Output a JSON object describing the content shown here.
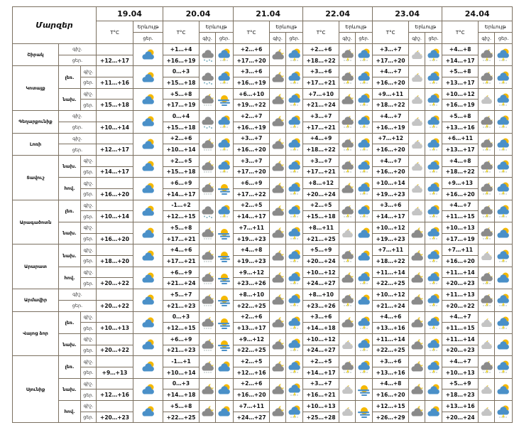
{
  "header": {
    "title": "Մարզեր",
    "tc": "T°C",
    "phen": "Երևույթ",
    "night": "գիշ.",
    "day": "ցեր.",
    "dates": [
      "19.04",
      "20.04",
      "21.04",
      "22.04",
      "23.04",
      "24.04"
    ]
  },
  "colors": {
    "border": "#7b7060",
    "sun": "#f5b800",
    "cloud_blue": "#4a90c8",
    "cloud_gray": "#8a8a8a",
    "cloud_light": "#c4c4c4"
  },
  "regions": [
    {
      "name": "Շիրակ",
      "subs": [
        {
          "name": "",
          "t19": "+12…+17",
          "days": [
            {
              "n": "+1…+4",
              "d": "+16…+19",
              "icons": [
                "rain-snow-night",
                "thunder-rain-day"
              ]
            },
            {
              "n": "+2…+6",
              "d": "+17…+20",
              "icons": [
                "cloudy-night",
                "thunder-rain-day"
              ]
            },
            {
              "n": "+2…+6",
              "d": "+18…+22",
              "icons": [
                "thunder-rain-night",
                "thunder-rain-day"
              ]
            },
            {
              "n": "+3…+7",
              "d": "+17…+20",
              "icons": [
                "partly-cloudy-night",
                "thunder-rain-day"
              ]
            },
            {
              "n": "+4…+8",
              "d": "+14…+17",
              "icons": [
                "thunder-rain-night",
                "thunder-rain-day"
              ]
            }
          ]
        }
      ]
    },
    {
      "name": "Կոտայք",
      "subs": [
        {
          "name": "լեռ.",
          "t19": "+11…+16",
          "days": [
            {
              "n": "0…+3",
              "d": "+15…+18",
              "icons": [
                "rain-snow-night",
                "thunder-rain-day"
              ]
            },
            {
              "n": "+3…+6",
              "d": "+16…+19",
              "icons": [
                "cloudy-night",
                "thunder-rain-day"
              ]
            },
            {
              "n": "+3…+6",
              "d": "+17…+21",
              "icons": [
                "thunder-rain-night",
                "thunder-rain-day"
              ]
            },
            {
              "n": "+4…+7",
              "d": "+16…+20",
              "icons": [
                "partly-cloudy-night",
                "thunder-rain-day"
              ]
            },
            {
              "n": "+5…+8",
              "d": "+13…+17",
              "icons": [
                "thunder-rain-night",
                "thunder-rain-day"
              ]
            }
          ]
        },
        {
          "name": "նախ.",
          "t19": "+15…+18",
          "days": [
            {
              "n": "+5…+8",
              "d": "+17…+19",
              "icons": [
                "cloudy-night-drizzle",
                "sun-haze"
              ]
            },
            {
              "n": "+6…+10",
              "d": "+19…+22",
              "icons": [
                "cloudy-night",
                "thunder-rain-day"
              ]
            },
            {
              "n": "+7…+10",
              "d": "+21…+24",
              "icons": [
                "cloudy-night",
                "thunder-rain-day"
              ]
            },
            {
              "n": "+9…+11",
              "d": "+18…+22",
              "icons": [
                "partly-cloudy-night",
                "thunder-rain-day"
              ]
            },
            {
              "n": "+10…+12",
              "d": "+16…+19",
              "icons": [
                "partly-cloudy-night",
                "thunder-rain-day"
              ]
            }
          ]
        }
      ]
    },
    {
      "name": "Գեղարքունիք",
      "subs": [
        {
          "name": "",
          "t19": "+10…+14",
          "days": [
            {
              "n": "0…+4",
              "d": "+15…+18",
              "icons": [
                "rain-snow-night",
                "thunder-rain-day"
              ]
            },
            {
              "n": "+2…+7",
              "d": "+16…+19",
              "icons": [
                "cloudy-night",
                "thunder-rain-day"
              ]
            },
            {
              "n": "+3…+7",
              "d": "+17…+21",
              "icons": [
                "thunder-rain-night",
                "thunder-rain-day"
              ]
            },
            {
              "n": "+4…+7",
              "d": "+16…+19",
              "icons": [
                "partly-cloudy-night",
                "thunder-rain-day"
              ]
            },
            {
              "n": "+5…+8",
              "d": "+13…+16",
              "icons": [
                "thunder-rain-night",
                "thunder-rain-day"
              ]
            }
          ]
        }
      ]
    },
    {
      "name": "Լոռի",
      "subs": [
        {
          "name": "",
          "t19": "+12…+17",
          "days": [
            {
              "n": "+2…+6",
              "d": "+10…+14",
              "icons": [
                "cloudy-night-drizzle",
                "thunder-rain-day"
              ]
            },
            {
              "n": "+3…+7",
              "d": "+16…+20",
              "icons": [
                "cloudy-night",
                "thunder-rain-day"
              ]
            },
            {
              "n": "+4…+9",
              "d": "+18…+22",
              "icons": [
                "thunder-rain-night",
                "thunder-rain-day"
              ]
            },
            {
              "n": "+7…+12",
              "d": "+16…+20",
              "icons": [
                "partly-cloudy-night",
                "thunder-rain-day"
              ]
            },
            {
              "n": "+6…+11",
              "d": "+13…+17",
              "icons": [
                "thunder-rain-night",
                "thunder-rain-day"
              ]
            }
          ]
        }
      ]
    },
    {
      "name": "Տավուշ",
      "subs": [
        {
          "name": "նախ.",
          "t19": "+14…+17",
          "days": [
            {
              "n": "+2…+5",
              "d": "+15…+18",
              "icons": [
                "cloudy-night-drizzle",
                "thunder-rain-day"
              ]
            },
            {
              "n": "+3…+7",
              "d": "+17…+20",
              "icons": [
                "cloudy-night",
                "thunder-rain-day"
              ]
            },
            {
              "n": "+3…+7",
              "d": "+17…+21",
              "icons": [
                "thunder-rain-night",
                "thunder-rain-day"
              ]
            },
            {
              "n": "+4…+7",
              "d": "+16…+20",
              "icons": [
                "partly-cloudy-night",
                "thunder-rain-day"
              ]
            },
            {
              "n": "+4…+8",
              "d": "+18…+22",
              "icons": [
                "thunder-rain-night",
                "thunder-rain-day"
              ]
            }
          ]
        },
        {
          "name": "հով.",
          "t19": "+16…+20",
          "days": [
            {
              "n": "+6…+9",
              "d": "+14…+17",
              "icons": [
                "cloudy-night-drizzle",
                "sun-haze"
              ]
            },
            {
              "n": "+6…+9",
              "d": "+17…+22",
              "icons": [
                "cloudy-night",
                "thunder-rain-day"
              ]
            },
            {
              "n": "+8…+12",
              "d": "+20…+24",
              "icons": [
                "cloudy-night",
                "thunder-rain-day"
              ]
            },
            {
              "n": "+10…+14",
              "d": "+19…+23",
              "icons": [
                "partly-cloudy-night",
                "thunder-rain-day"
              ]
            },
            {
              "n": "+9…+13",
              "d": "+16…+20",
              "icons": [
                "thunder-rain-night",
                "thunder-rain-day"
              ]
            }
          ]
        }
      ]
    },
    {
      "name": "Արագածոտն",
      "subs": [
        {
          "name": "լեռ.",
          "t19": "+10…+14",
          "days": [
            {
              "n": "-1…+2",
              "d": "+12…+15",
              "icons": [
                "rain-snow-night",
                "thunder-rain-day"
              ]
            },
            {
              "n": "+2…+5",
              "d": "+14…+17",
              "icons": [
                "cloudy-night",
                "thunder-rain-day"
              ]
            },
            {
              "n": "+2…+5",
              "d": "+15…+18",
              "icons": [
                "thunder-rain-night",
                "thunder-rain-day"
              ]
            },
            {
              "n": "+3…+6",
              "d": "+14…+17",
              "icons": [
                "partly-cloudy-night",
                "thunder-rain-day"
              ]
            },
            {
              "n": "+4…+7",
              "d": "+11…+15",
              "icons": [
                "thunder-rain-night",
                "thunder-rain-day"
              ]
            }
          ]
        },
        {
          "name": "նախ.",
          "t19": "+16…+20",
          "days": [
            {
              "n": "+5…+8",
              "d": "+17…+21",
              "icons": [
                "cloudy-night-drizzle",
                "sun-haze"
              ]
            },
            {
              "n": "+7…+11",
              "d": "+19…+23",
              "icons": [
                "cloudy-night",
                "thunder-rain-day"
              ]
            },
            {
              "n": "+8…+11",
              "d": "+21…+25",
              "icons": [
                "partly-cloudy-night",
                "partly-cloudy-day"
              ]
            },
            {
              "n": "+10…+12",
              "d": "+19…+23",
              "icons": [
                "cloudy-night",
                "thunder-rain-day"
              ]
            },
            {
              "n": "+10…+13",
              "d": "+17…+19",
              "icons": [
                "thunder-rain-night",
                "partly-cloudy-day"
              ]
            }
          ]
        }
      ]
    },
    {
      "name": "Արարատ",
      "subs": [
        {
          "name": "նախ.",
          "t19": "+18…+20",
          "days": [
            {
              "n": "+4…+6",
              "d": "+17…+21",
              "icons": [
                "cloudy-night-drizzle",
                "sun-haze"
              ]
            },
            {
              "n": "+4…+8",
              "d": "+19…+23",
              "icons": [
                "cloudy-night",
                "thunder-rain-day"
              ]
            },
            {
              "n": "+5…+9",
              "d": "+20…+24",
              "icons": [
                "thunder-rain-night",
                "partly-cloudy-day"
              ]
            },
            {
              "n": "+7…+11",
              "d": "+18…+22",
              "icons": [
                "cloudy-night",
                "thunder-rain-day"
              ]
            },
            {
              "n": "+7…+11",
              "d": "+16…+20",
              "icons": [
                "partly-cloudy-night",
                "thunder-rain-day"
              ]
            }
          ]
        },
        {
          "name": "հով.",
          "t19": "+20…+22",
          "days": [
            {
              "n": "+6…+9",
              "d": "+21…+24",
              "icons": [
                "cloudy-night-drizzle",
                "sun-haze"
              ]
            },
            {
              "n": "+9…+12",
              "d": "+23…+26",
              "icons": [
                "cloudy-night",
                "thunder-rain-day"
              ]
            },
            {
              "n": "+10…+12",
              "d": "+24…+27",
              "icons": [
                "cloudy-night",
                "thunder-rain-day"
              ]
            },
            {
              "n": "+11…+14",
              "d": "+22…+25",
              "icons": [
                "cloudy-night",
                "thunder-rain-day"
              ]
            },
            {
              "n": "+11…+14",
              "d": "+20…+23",
              "icons": [
                "thunder-rain-night",
                "partly-cloudy-day"
              ]
            }
          ]
        }
      ]
    },
    {
      "name": "Արմավիր",
      "subs": [
        {
          "name": "",
          "t19": "+20…+22",
          "days": [
            {
              "n": "+5…+7",
              "d": "+21…+23",
              "icons": [
                "cloudy-night-drizzle",
                "sun-haze"
              ]
            },
            {
              "n": "+8…+10",
              "d": "+22…+25",
              "icons": [
                "cloudy-night",
                "thunder-rain-day"
              ]
            },
            {
              "n": "+8…+10",
              "d": "+23…+26",
              "icons": [
                "thunder-rain-night",
                "partly-cloudy-day"
              ]
            },
            {
              "n": "+10…+12",
              "d": "+21…+24",
              "icons": [
                "cloudy-night",
                "thunder-rain-day"
              ]
            },
            {
              "n": "+11…+13",
              "d": "+20…+22",
              "icons": [
                "thunder-rain-night",
                "thunder-rain-day"
              ]
            }
          ]
        }
      ]
    },
    {
      "name": "Վայոց ձոր",
      "subs": [
        {
          "name": "լեռ.",
          "t19": "+10…+13",
          "days": [
            {
              "n": "0…+3",
              "d": "+12…+15",
              "icons": [
                "cloudy-night-drizzle",
                "sun-haze"
              ]
            },
            {
              "n": "+2…+6",
              "d": "+13…+17",
              "icons": [
                "cloudy-night",
                "thunder-rain-day"
              ]
            },
            {
              "n": "+3…+6",
              "d": "+14…+18",
              "icons": [
                "cloudy-night",
                "thunder-rain-day"
              ]
            },
            {
              "n": "+4…+6",
              "d": "+13…+16",
              "icons": [
                "cloudy-night",
                "thunder-rain-day"
              ]
            },
            {
              "n": "+4…+7",
              "d": "+11…+15",
              "icons": [
                "partly-cloudy-night",
                "thunder-rain-day"
              ]
            }
          ]
        },
        {
          "name": "նախ.",
          "t19": "+20…+22",
          "days": [
            {
              "n": "+6…+9",
              "d": "+21…+23",
              "icons": [
                "cloudy-night-drizzle",
                "sun-haze"
              ]
            },
            {
              "n": "+9…+12",
              "d": "+22…+25",
              "icons": [
                "cloudy-night",
                "thunder-rain-day"
              ]
            },
            {
              "n": "+10…+12",
              "d": "+24…+27",
              "icons": [
                "partly-cloudy-night",
                "thunder-rain-day"
              ]
            },
            {
              "n": "+11…+14",
              "d": "+22…+25",
              "icons": [
                "cloudy-night",
                "thunder-rain-day"
              ]
            },
            {
              "n": "+11…+14",
              "d": "+20…+23",
              "icons": [
                "partly-cloudy-night",
                "partly-cloudy-day"
              ]
            }
          ]
        }
      ]
    },
    {
      "name": "Սյունիք",
      "subs": [
        {
          "name": "լեռ.",
          "t19": "+9…+13",
          "days": [
            {
              "n": "-1…+1",
              "d": "+10…+14",
              "icons": [
                "cloudy-night-drizzle",
                "partly-cloudy-day"
              ]
            },
            {
              "n": "+2…+5",
              "d": "+12…+16",
              "icons": [
                "cloudy-night",
                "thunder-rain-day"
              ]
            },
            {
              "n": "+2…+5",
              "d": "+14…+17",
              "icons": [
                "thunder-rain-night",
                "thunder-rain-day"
              ]
            },
            {
              "n": "+3…+6",
              "d": "+13…+16",
              "icons": [
                "cloudy-night",
                "thunder-rain-day"
              ]
            },
            {
              "n": "+4…+7",
              "d": "+10…+13",
              "icons": [
                "thunder-rain-night",
                "thunder-rain-day"
              ]
            }
          ]
        },
        {
          "name": "նախ.",
          "t19": "+12…+16",
          "days": [
            {
              "n": "0…+3",
              "d": "+14…+18",
              "icons": [
                "cloudy-night",
                "partly-cloudy-day"
              ]
            },
            {
              "n": "+2…+6",
              "d": "+16…+20",
              "icons": [
                "cloudy-night",
                "thunder-rain-day"
              ]
            },
            {
              "n": "+3…+7",
              "d": "+16…+21",
              "icons": [
                "partly-cloudy-night",
                "sun-haze"
              ]
            },
            {
              "n": "+4…+8",
              "d": "+16…+20",
              "icons": [
                "cloudy-night",
                "partly-cloudy-day"
              ]
            },
            {
              "n": "+5…+9",
              "d": "+18…+23",
              "icons": [
                "partly-cloudy-night",
                "partly-cloudy-day"
              ]
            }
          ]
        },
        {
          "name": "հով.",
          "t19": "+20…+23",
          "days": [
            {
              "n": "+5…+8",
              "d": "+22…+25",
              "icons": [
                "cloudy-night",
                "partly-cloudy-day"
              ]
            },
            {
              "n": "+7…+11",
              "d": "+24…+27",
              "icons": [
                "cloudy-night",
                "thunder-rain-day"
              ]
            },
            {
              "n": "+10…+13",
              "d": "+25…+28",
              "icons": [
                "partly-cloudy-night",
                "sun-haze"
              ]
            },
            {
              "n": "+12…+15",
              "d": "+26…+29",
              "icons": [
                "cloudy-night",
                "partly-cloudy-day"
              ]
            },
            {
              "n": "+13…+16",
              "d": "+20…+24",
              "icons": [
                "partly-cloudy-night",
                "thunder-rain-day"
              ]
            }
          ]
        }
      ]
    }
  ]
}
